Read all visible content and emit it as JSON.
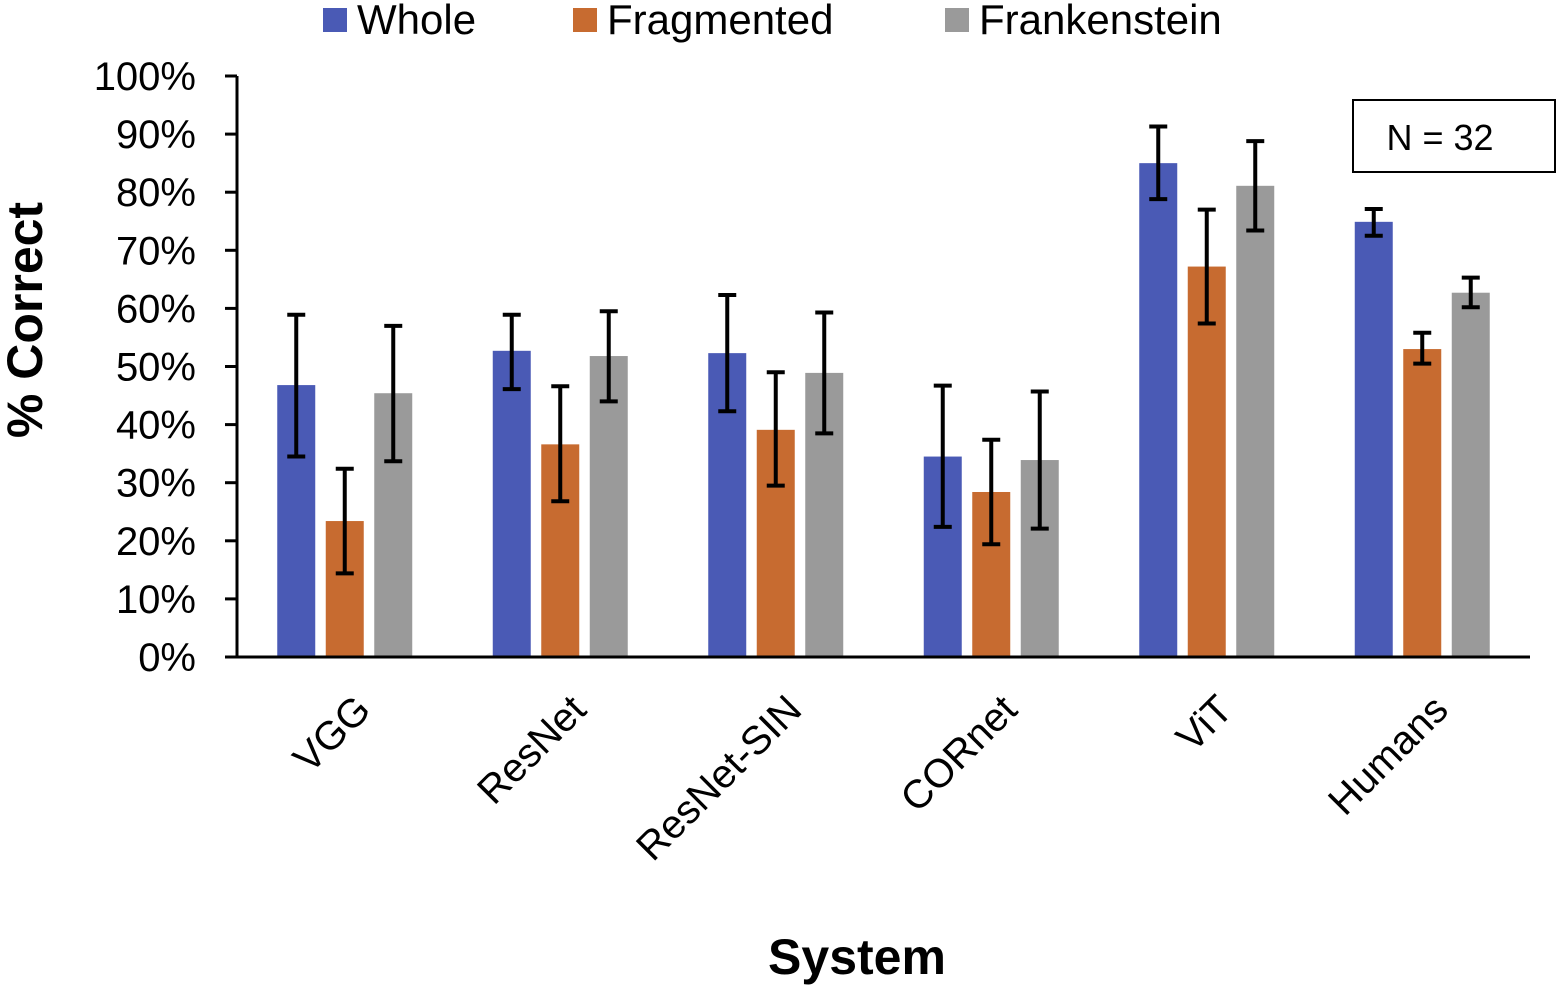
{
  "chart_data": {
    "type": "bar",
    "title": "",
    "xlabel": "System",
    "ylabel": "% Correct",
    "ylim": [
      0,
      100
    ],
    "yticks": [
      0,
      10,
      20,
      30,
      40,
      50,
      60,
      70,
      80,
      90,
      100
    ],
    "ytick_suffix": "%",
    "categories": [
      "VGG",
      "ResNet",
      "ResNet-SIN",
      "CORnet",
      "ViT",
      "Humans"
    ],
    "series": [
      {
        "name": "Whole",
        "color": "#4a5ab5",
        "values": [
          46.8,
          52.7,
          52.3,
          34.5,
          85.0,
          74.9
        ],
        "err_low": [
          34.5,
          46.1,
          42.3,
          22.4,
          78.8,
          72.5
        ],
        "err_high": [
          58.9,
          58.9,
          62.3,
          46.7,
          91.3,
          77.1
        ]
      },
      {
        "name": "Fragmented",
        "color": "#c76b30",
        "values": [
          23.4,
          36.6,
          39.1,
          28.4,
          67.2,
          53.0
        ],
        "err_low": [
          14.4,
          26.8,
          29.5,
          19.4,
          57.4,
          50.5
        ],
        "err_high": [
          32.4,
          46.6,
          49.0,
          37.4,
          77.0,
          55.8
        ]
      },
      {
        "name": "Frankenstein",
        "color": "#9a9a9a",
        "values": [
          45.4,
          51.8,
          48.9,
          33.9,
          81.1,
          62.7
        ],
        "err_low": [
          33.7,
          44.0,
          38.5,
          22.1,
          73.4,
          60.2
        ],
        "err_high": [
          57.0,
          59.5,
          59.3,
          45.7,
          88.8,
          65.3
        ]
      }
    ],
    "legend_position": "top-center",
    "grid": false,
    "annotation": "N = 32"
  }
}
